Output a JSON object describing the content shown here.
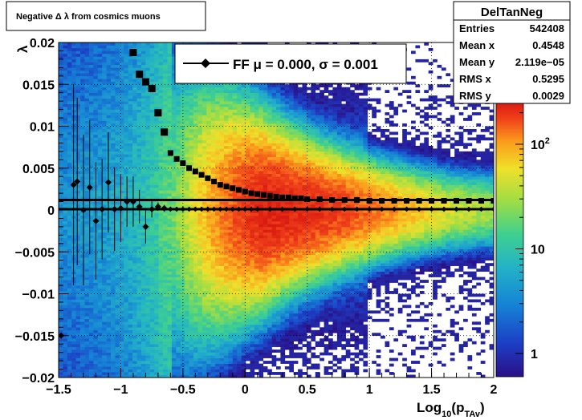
{
  "title": "Negative Δ λ  from cosmics muons",
  "stats": {
    "name": "DelTanNeg",
    "rows": [
      {
        "label": "Entries",
        "value": "542408"
      },
      {
        "label": "Mean x",
        "value": "0.4548"
      },
      {
        "label": "Mean y",
        "value": "2.119e−05"
      },
      {
        "label": "RMS x",
        "value": "0.5295"
      },
      {
        "label": "RMS y",
        "value": "0.0029"
      }
    ]
  },
  "legend": {
    "entry": "FF μ =  0.000, σ =   0.001"
  },
  "colors": {
    "palette": [
      "#2a0f86",
      "#1c3ec4",
      "#1582d6",
      "#23b3c6",
      "#3fd08f",
      "#9edd45",
      "#f0e02a",
      "#fb9a1c",
      "#f0421a",
      "#d91a10"
    ],
    "profile": "#000000",
    "frame": "#000000"
  },
  "chart_data": {
    "type": "heatmap",
    "xlabel_main": "Log",
    "xlabel_sub1": "10",
    "xlabel_paren": "(p",
    "xlabel_sub2": "TAv",
    "xlabel_close": ")",
    "ylabel": "λ",
    "xlim": [
      -1.5,
      2
    ],
    "ylim": [
      -0.02,
      0.02
    ],
    "log_z": true,
    "grid": true,
    "xticks": [
      {
        "v": -1.5,
        "label": "−1.5"
      },
      {
        "v": -1,
        "label": "−1"
      },
      {
        "v": -0.5,
        "label": "−0.5"
      },
      {
        "v": 0,
        "label": "0"
      },
      {
        "v": 0.5,
        "label": "0.5"
      },
      {
        "v": 1,
        "label": "1"
      },
      {
        "v": 1.5,
        "label": "1.5"
      },
      {
        "v": 2,
        "label": "2"
      }
    ],
    "yticks": [
      {
        "v": -0.02,
        "label": "−0.02"
      },
      {
        "v": -0.015,
        "label": "−0.015"
      },
      {
        "v": -0.01,
        "label": "−0.01"
      },
      {
        "v": -0.005,
        "label": "−0.005"
      },
      {
        "v": 0,
        "label": "0"
      },
      {
        "v": 0.005,
        "label": "0.005"
      },
      {
        "v": 0.01,
        "label": "0.01"
      },
      {
        "v": 0.015,
        "label": "0.015"
      },
      {
        "v": 0.02,
        "label": "0.02"
      }
    ],
    "zticks": [
      {
        "v": 1,
        "label": "1",
        "sup": ""
      },
      {
        "v": 10,
        "label": "10",
        "sup": ""
      },
      {
        "v": 100,
        "label": "10",
        "sup": "2"
      }
    ],
    "zlim": [
      0.6,
      250
    ],
    "hlines": [
      0.0012,
      0.0001
    ],
    "rms_profile": {
      "x": [
        -0.9,
        -0.85,
        -0.8,
        -0.75,
        -0.7,
        -0.65,
        -0.6,
        -0.55,
        -0.5,
        -0.45,
        -0.4,
        -0.35,
        -0.3,
        -0.25,
        -0.2,
        -0.15,
        -0.1,
        -0.05,
        0,
        0.05,
        0.1,
        0.15,
        0.2,
        0.25,
        0.3,
        0.35,
        0.4,
        0.45,
        0.5,
        0.6,
        0.7,
        0.8,
        0.9,
        1.0,
        1.1,
        1.2,
        1.3,
        1.4,
        1.5,
        1.6,
        1.7,
        1.8,
        1.9,
        2.0
      ],
      "y": [
        0.0188,
        0.0162,
        0.0153,
        0.0145,
        0.0116,
        0.0093,
        0.0068,
        0.0061,
        0.0056,
        0.005,
        0.0046,
        0.0042,
        0.0038,
        0.0034,
        0.003,
        0.0028,
        0.0026,
        0.0024,
        0.0022,
        0.002,
        0.0019,
        0.0018,
        0.0017,
        0.0016,
        0.0015,
        0.0015,
        0.0014,
        0.0014,
        0.0013,
        0.0013,
        0.0012,
        0.0012,
        0.0012,
        0.0011,
        0.0011,
        0.0011,
        0.0011,
        0.0011,
        0.0011,
        0.0011,
        0.0011,
        0.0011,
        0.0011,
        0.0011
      ]
    },
    "mean_profile": {
      "x": [
        -1.48,
        -1.38,
        -1.35,
        -1.3,
        -1.25,
        -1.2,
        -1.15,
        -1.1,
        -1.05,
        -1.0,
        -0.95,
        -0.9,
        -0.85,
        -0.8,
        -0.75,
        -0.7,
        -0.65,
        -0.6,
        -0.55,
        -0.5,
        -0.45,
        -0.4,
        -0.35,
        -0.3,
        -0.25,
        -0.2,
        -0.15,
        -0.1,
        -0.05,
        0,
        0.05,
        0.1,
        0.2,
        0.3,
        0.4,
        0.5,
        0.6,
        0.7,
        0.8,
        0.9,
        1.0,
        1.1,
        1.2,
        1.3,
        1.4,
        1.5,
        1.6,
        1.7,
        1.8,
        1.9,
        2.0
      ],
      "y": [
        -0.015,
        0.003,
        0.0034,
        0.0,
        0.0027,
        -0.0013,
        0.0001,
        0.0033,
        0.0001,
        0.0002,
        0.001,
        0.001,
        0.0004,
        -0.002,
        0.0001,
        0.0004,
        0.0002,
        0.0001,
        0.0001,
        0.0001,
        0.0001,
        0.0001,
        0.0001,
        0.0001,
        0.0001,
        0.0001,
        0.0001,
        0.0001,
        0.0001,
        0.0001,
        0.0001,
        0.0001,
        0.0001,
        0.0001,
        0.0001,
        0.0001,
        0.0001,
        0.0001,
        0.0001,
        0.0001,
        0.0001,
        0.0001,
        0.0001,
        0.0001,
        0.0001,
        0.0001,
        0.0001,
        0.0001,
        0.0001,
        0.0001,
        0.0001
      ],
      "err": [
        0,
        0.012,
        0.01,
        0.009,
        0.008,
        0.007,
        0.006,
        0.006,
        0.005,
        0.004,
        0.003,
        0.003,
        0.002,
        0.002,
        0.001,
        0.0005,
        0.0004,
        0.0003,
        0.0002,
        0.0002,
        0.0001,
        0.0001,
        0.0001,
        0.0001,
        0.0001,
        0.0001,
        0.0001,
        0.0001,
        0.0001,
        0.0001,
        0.0001,
        0.0001,
        0.0001,
        0.0001,
        0.0001,
        0.0001,
        0.0001,
        0.0001,
        0.0001,
        0.0001,
        0.0001,
        0.0001,
        0.0001,
        0.0001,
        0.0001,
        0.0001,
        0.0001,
        0.0001,
        0.0001,
        0.0001,
        0.0001
      ]
    }
  }
}
